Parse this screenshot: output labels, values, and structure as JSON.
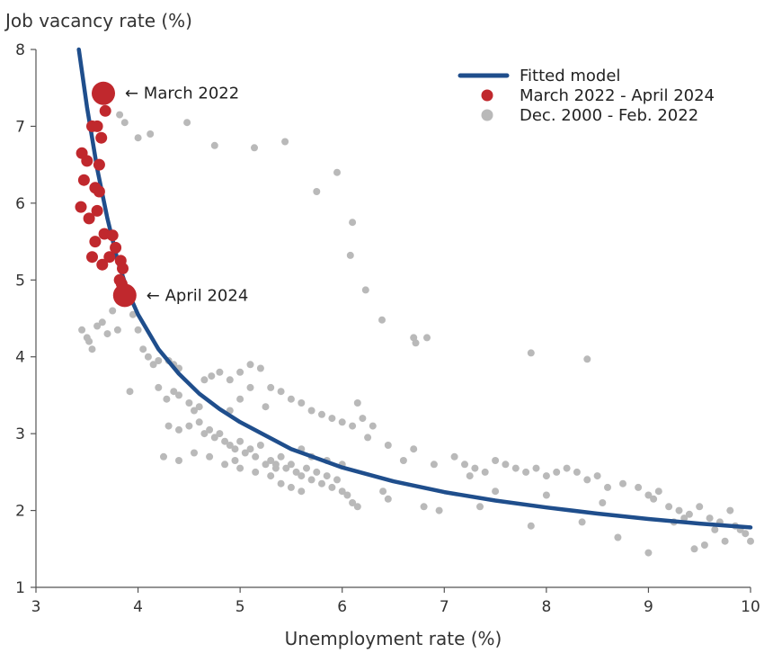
{
  "chart_data": {
    "type": "scatter",
    "ylabel": "Job vacancy rate (%)",
    "xlabel": "Unemployment rate (%)",
    "xlim": [
      3,
      10
    ],
    "ylim": [
      1,
      8
    ],
    "x_ticks": [
      "3",
      "4",
      "5",
      "6",
      "7",
      "8",
      "9",
      "10"
    ],
    "y_ticks": [
      "1",
      "2",
      "3",
      "4",
      "5",
      "6",
      "7",
      "8"
    ],
    "grid": false,
    "legend_position": "top-right",
    "legend": [
      {
        "label": "Fitted model",
        "kind": "line",
        "color": "#1f4e8c"
      },
      {
        "label": "March 2022 - April 2024",
        "kind": "dot",
        "color": "#c0282d"
      },
      {
        "label": "Dec. 2000 - Feb. 2022",
        "kind": "dot",
        "color": "#b9b9b9"
      }
    ],
    "annotations": [
      {
        "text": "← March 2022",
        "x": 3.66,
        "y": 7.43
      },
      {
        "text": "← April 2024",
        "x": 3.87,
        "y": 4.8
      }
    ],
    "fitted_model": {
      "name": "Fitted model",
      "color": "#1f4e8c",
      "x": [
        3.42,
        3.5,
        3.6,
        3.7,
        3.8,
        3.9,
        4.0,
        4.2,
        4.4,
        4.6,
        4.8,
        5.0,
        5.5,
        6.0,
        6.5,
        7.0,
        7.5,
        8.0,
        8.5,
        9.0,
        9.5,
        10.0
      ],
      "y": [
        8.0,
        7.25,
        6.45,
        5.8,
        5.25,
        4.85,
        4.55,
        4.1,
        3.78,
        3.52,
        3.32,
        3.15,
        2.8,
        2.56,
        2.38,
        2.24,
        2.13,
        2.04,
        1.96,
        1.89,
        1.83,
        1.78
      ]
    },
    "series": [
      {
        "name": "March 2022 - April 2024",
        "color": "#c0282d",
        "points": [
          [
            3.45,
            6.65
          ],
          [
            3.5,
            6.55
          ],
          [
            3.55,
            7.0
          ],
          [
            3.6,
            7.0
          ],
          [
            3.64,
            6.85
          ],
          [
            3.68,
            7.2
          ],
          [
            3.47,
            6.3
          ],
          [
            3.62,
            6.5
          ],
          [
            3.58,
            6.2
          ],
          [
            3.44,
            5.95
          ],
          [
            3.52,
            5.8
          ],
          [
            3.6,
            5.9
          ],
          [
            3.62,
            6.15
          ],
          [
            3.58,
            5.5
          ],
          [
            3.67,
            5.6
          ],
          [
            3.75,
            5.58
          ],
          [
            3.55,
            5.3
          ],
          [
            3.65,
            5.2
          ],
          [
            3.72,
            5.3
          ],
          [
            3.78,
            5.42
          ],
          [
            3.83,
            5.25
          ],
          [
            3.82,
            5.0
          ],
          [
            3.85,
            5.15
          ],
          [
            3.84,
            4.95
          ]
        ],
        "highlight": [
          [
            3.66,
            7.43
          ],
          [
            3.87,
            4.8
          ]
        ]
      },
      {
        "name": "Dec. 2000 - Feb. 2022",
        "color": "#b9b9b9",
        "points": [
          [
            3.82,
            7.15
          ],
          [
            3.87,
            7.05
          ],
          [
            4.0,
            6.85
          ],
          [
            4.12,
            6.9
          ],
          [
            4.48,
            7.05
          ],
          [
            4.75,
            6.75
          ],
          [
            5.14,
            6.72
          ],
          [
            5.44,
            6.8
          ],
          [
            5.75,
            6.15
          ],
          [
            5.95,
            6.4
          ],
          [
            6.1,
            5.75
          ],
          [
            6.08,
            5.32
          ],
          [
            6.23,
            4.87
          ],
          [
            6.39,
            4.48
          ],
          [
            6.7,
            4.25
          ],
          [
            6.72,
            4.18
          ],
          [
            6.83,
            4.25
          ],
          [
            7.85,
            4.05
          ],
          [
            8.4,
            3.97
          ],
          [
            3.45,
            4.35
          ],
          [
            3.5,
            4.25
          ],
          [
            3.55,
            4.1
          ],
          [
            3.52,
            4.2
          ],
          [
            3.6,
            4.4
          ],
          [
            3.65,
            4.45
          ],
          [
            3.7,
            4.3
          ],
          [
            3.75,
            4.6
          ],
          [
            3.8,
            4.35
          ],
          [
            3.85,
            4.7
          ],
          [
            3.9,
            4.75
          ],
          [
            3.95,
            4.55
          ],
          [
            4.0,
            4.35
          ],
          [
            4.05,
            4.1
          ],
          [
            4.1,
            4.0
          ],
          [
            4.15,
            3.9
          ],
          [
            4.2,
            3.95
          ],
          [
            4.3,
            3.95
          ],
          [
            4.35,
            3.9
          ],
          [
            4.4,
            3.85
          ],
          [
            3.92,
            3.55
          ],
          [
            4.2,
            3.6
          ],
          [
            4.28,
            3.45
          ],
          [
            4.35,
            3.55
          ],
          [
            4.4,
            3.5
          ],
          [
            4.5,
            3.4
          ],
          [
            4.55,
            3.3
          ],
          [
            4.6,
            3.35
          ],
          [
            4.65,
            3.7
          ],
          [
            4.72,
            3.75
          ],
          [
            4.8,
            3.8
          ],
          [
            4.9,
            3.7
          ],
          [
            5.0,
            3.8
          ],
          [
            5.1,
            3.9
          ],
          [
            5.2,
            3.85
          ],
          [
            5.3,
            3.6
          ],
          [
            5.4,
            3.55
          ],
          [
            5.5,
            3.45
          ],
          [
            5.6,
            3.4
          ],
          [
            5.7,
            3.3
          ],
          [
            5.8,
            3.25
          ],
          [
            5.9,
            3.2
          ],
          [
            6.0,
            3.15
          ],
          [
            6.1,
            3.1
          ],
          [
            6.15,
            3.4
          ],
          [
            6.2,
            3.2
          ],
          [
            6.3,
            3.1
          ],
          [
            4.9,
            3.3
          ],
          [
            5.0,
            3.45
          ],
          [
            5.1,
            3.6
          ],
          [
            5.25,
            3.35
          ],
          [
            4.3,
            3.1
          ],
          [
            4.4,
            3.05
          ],
          [
            4.5,
            3.1
          ],
          [
            4.6,
            3.15
          ],
          [
            4.65,
            3.0
          ],
          [
            4.7,
            3.05
          ],
          [
            4.75,
            2.95
          ],
          [
            4.8,
            3.0
          ],
          [
            4.85,
            2.9
          ],
          [
            4.9,
            2.85
          ],
          [
            4.95,
            2.8
          ],
          [
            5.0,
            2.9
          ],
          [
            5.05,
            2.75
          ],
          [
            5.1,
            2.8
          ],
          [
            5.15,
            2.7
          ],
          [
            5.2,
            2.85
          ],
          [
            5.3,
            2.65
          ],
          [
            5.35,
            2.6
          ],
          [
            5.4,
            2.7
          ],
          [
            5.45,
            2.55
          ],
          [
            5.5,
            2.6
          ],
          [
            5.55,
            2.5
          ],
          [
            5.6,
            2.45
          ],
          [
            5.65,
            2.55
          ],
          [
            5.7,
            2.4
          ],
          [
            5.75,
            2.5
          ],
          [
            5.8,
            2.35
          ],
          [
            5.85,
            2.45
          ],
          [
            5.9,
            2.3
          ],
          [
            5.95,
            2.4
          ],
          [
            6.0,
            2.25
          ],
          [
            6.05,
            2.2
          ],
          [
            6.1,
            2.1
          ],
          [
            6.15,
            2.05
          ],
          [
            5.3,
            2.45
          ],
          [
            5.4,
            2.35
          ],
          [
            5.5,
            2.3
          ],
          [
            5.6,
            2.25
          ],
          [
            4.55,
            2.75
          ],
          [
            4.7,
            2.7
          ],
          [
            4.85,
            2.6
          ],
          [
            5.0,
            2.55
          ],
          [
            4.25,
            2.7
          ],
          [
            4.4,
            2.65
          ],
          [
            5.6,
            2.8
          ],
          [
            5.7,
            2.7
          ],
          [
            5.85,
            2.65
          ],
          [
            6.0,
            2.6
          ],
          [
            6.45,
            2.15
          ],
          [
            6.6,
            2.65
          ],
          [
            6.7,
            2.8
          ],
          [
            6.9,
            2.6
          ],
          [
            7.1,
            2.7
          ],
          [
            7.2,
            2.6
          ],
          [
            7.3,
            2.55
          ],
          [
            7.4,
            2.5
          ],
          [
            7.5,
            2.65
          ],
          [
            7.6,
            2.6
          ],
          [
            7.7,
            2.55
          ],
          [
            7.8,
            2.5
          ],
          [
            7.9,
            2.55
          ],
          [
            8.0,
            2.45
          ],
          [
            8.1,
            2.5
          ],
          [
            8.2,
            2.55
          ],
          [
            8.3,
            2.5
          ],
          [
            8.4,
            2.4
          ],
          [
            8.5,
            2.45
          ],
          [
            8.6,
            2.3
          ],
          [
            8.75,
            2.35
          ],
          [
            8.9,
            2.3
          ],
          [
            9.0,
            2.2
          ],
          [
            9.05,
            2.15
          ],
          [
            9.1,
            2.25
          ],
          [
            9.2,
            2.05
          ],
          [
            9.3,
            2.0
          ],
          [
            9.4,
            1.95
          ],
          [
            9.5,
            2.05
          ],
          [
            9.6,
            1.9
          ],
          [
            9.7,
            1.85
          ],
          [
            9.8,
            2.0
          ],
          [
            9.85,
            1.8
          ],
          [
            9.9,
            1.75
          ],
          [
            9.95,
            1.7
          ],
          [
            10.0,
            1.6
          ],
          [
            9.55,
            1.55
          ],
          [
            9.45,
            1.5
          ],
          [
            9.0,
            1.45
          ],
          [
            8.7,
            1.65
          ],
          [
            8.35,
            1.85
          ],
          [
            7.85,
            1.8
          ],
          [
            7.35,
            2.05
          ],
          [
            6.95,
            2.0
          ],
          [
            9.75,
            1.6
          ],
          [
            9.65,
            1.75
          ],
          [
            9.35,
            1.9
          ],
          [
            9.25,
            1.85
          ],
          [
            8.55,
            2.1
          ],
          [
            8.0,
            2.2
          ],
          [
            7.5,
            2.25
          ],
          [
            6.8,
            2.05
          ],
          [
            6.4,
            2.25
          ],
          [
            5.15,
            2.5
          ],
          [
            5.25,
            2.6
          ],
          [
            5.35,
            2.55
          ],
          [
            4.95,
            2.65
          ],
          [
            6.25,
            2.95
          ],
          [
            6.45,
            2.85
          ],
          [
            7.25,
            2.45
          ]
        ]
      }
    ]
  }
}
